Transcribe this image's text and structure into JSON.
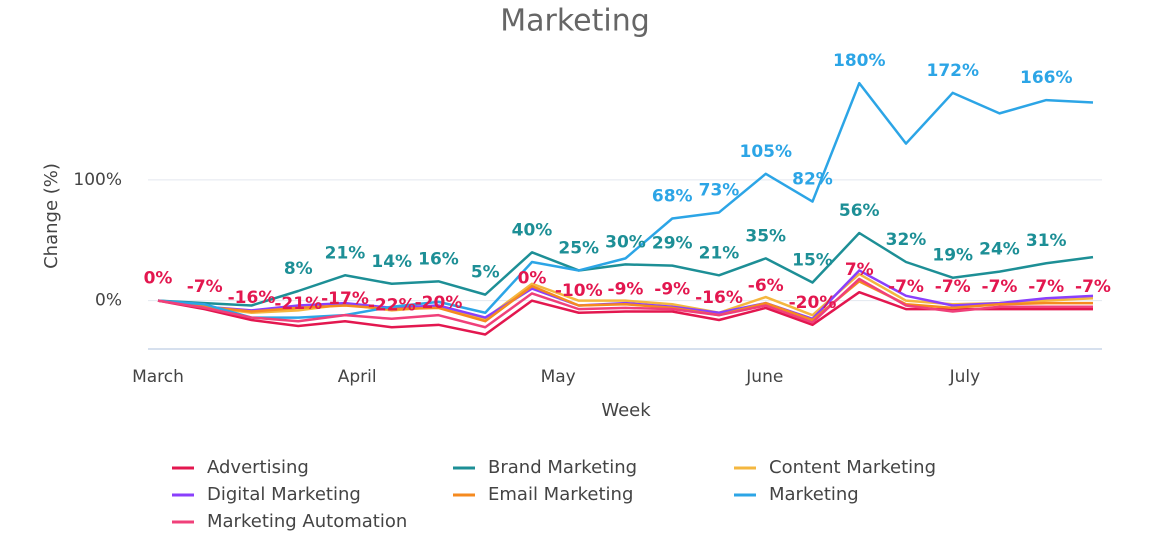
{
  "chart_data": {
    "type": "line",
    "title": "Marketing",
    "x_label": "Week",
    "y_label": "Change (%)",
    "x": [
      0,
      1,
      2,
      3,
      4,
      5,
      6,
      7,
      8,
      9,
      10,
      11,
      12,
      13,
      14,
      15,
      16,
      17,
      18,
      19,
      20
    ],
    "xlim": [
      0,
      20
    ],
    "xticks": [
      {
        "value": 0,
        "label": "March"
      },
      {
        "value": 4.26,
        "label": "April"
      },
      {
        "value": 8.56,
        "label": "May"
      },
      {
        "value": 12.98,
        "label": "June"
      },
      {
        "value": 17.26,
        "label": "July"
      }
    ],
    "ylim": [
      -40,
      200
    ],
    "yticks": [
      {
        "value": 0,
        "label": "0%"
      },
      {
        "value": 100,
        "label": "100%"
      }
    ],
    "grid": true,
    "legend": "bottom",
    "series": [
      {
        "name": "Advertising",
        "color": "#e3174f",
        "values": [
          0,
          -7,
          -16,
          -21,
          -17,
          -22,
          -20,
          -28,
          0,
          -10,
          -9,
          -9,
          -16,
          -6,
          -20,
          7,
          -7,
          -7,
          -7,
          -7,
          -7
        ],
        "value_labels": [
          "0%",
          "-7%",
          "-16%",
          "-21%",
          "-17%",
          "-22%",
          "-20%",
          null,
          "0%",
          "-10%",
          "-9%",
          "-9%",
          "-16%",
          "-6%",
          "-20%",
          "7%",
          "-7%",
          "-7%",
          "-7%",
          "-7%",
          "-7%"
        ]
      },
      {
        "name": "Brand Marketing",
        "color": "#1d8f96",
        "values": [
          0,
          -2,
          -4,
          8,
          21,
          14,
          16,
          5,
          40,
          25,
          30,
          29,
          21,
          35,
          15,
          56,
          32,
          19,
          24,
          31,
          36
        ],
        "value_labels": [
          null,
          null,
          null,
          "8%",
          "21%",
          "14%",
          "16%",
          "5%",
          "40%",
          "25%",
          "30%",
          "29%",
          "21%",
          "35%",
          "15%",
          "56%",
          "32%",
          "19%",
          "24%",
          "31%",
          null
        ]
      },
      {
        "name": "Content Marketing",
        "color": "#f4b73f",
        "values": [
          0,
          -5,
          -10,
          -8,
          -3,
          -8,
          -5,
          -15,
          14,
          0,
          0,
          -3,
          -10,
          3,
          -12,
          22,
          0,
          -3,
          -2,
          0,
          2
        ]
      },
      {
        "name": "Digital Marketing",
        "color": "#8a3ffc",
        "values": [
          0,
          -5,
          -8,
          -4,
          -2,
          -6,
          -4,
          -14,
          10,
          -4,
          -2,
          -5,
          -10,
          -2,
          -15,
          25,
          4,
          -4,
          -2,
          2,
          4
        ]
      },
      {
        "name": "Email Marketing",
        "color": "#f58a1f",
        "values": [
          0,
          -5,
          -9,
          -6,
          -4,
          -7,
          -6,
          -17,
          12,
          -4,
          -3,
          -6,
          -12,
          -2,
          -16,
          16,
          -3,
          -6,
          -3,
          -2,
          -2
        ]
      },
      {
        "name": "Marketing",
        "color": "#2ca5e6",
        "values": [
          0,
          -3,
          -14,
          -14,
          -12,
          -5,
          -1,
          -10,
          32,
          25,
          35,
          68,
          73,
          105,
          82,
          180,
          130,
          172,
          155,
          166,
          164
        ],
        "value_labels": [
          null,
          null,
          null,
          null,
          null,
          null,
          null,
          null,
          null,
          null,
          null,
          "68%",
          "73%",
          "105%",
          "82%",
          "180%",
          null,
          "172%",
          null,
          "166%",
          null
        ]
      },
      {
        "name": "Marketing Automation",
        "color": "#f0407a",
        "values": [
          0,
          -6,
          -14,
          -17,
          -12,
          -15,
          -12,
          -22,
          6,
          -7,
          -6,
          -7,
          -12,
          -4,
          -18,
          18,
          -4,
          -9,
          -5,
          -5,
          -5
        ]
      }
    ]
  }
}
